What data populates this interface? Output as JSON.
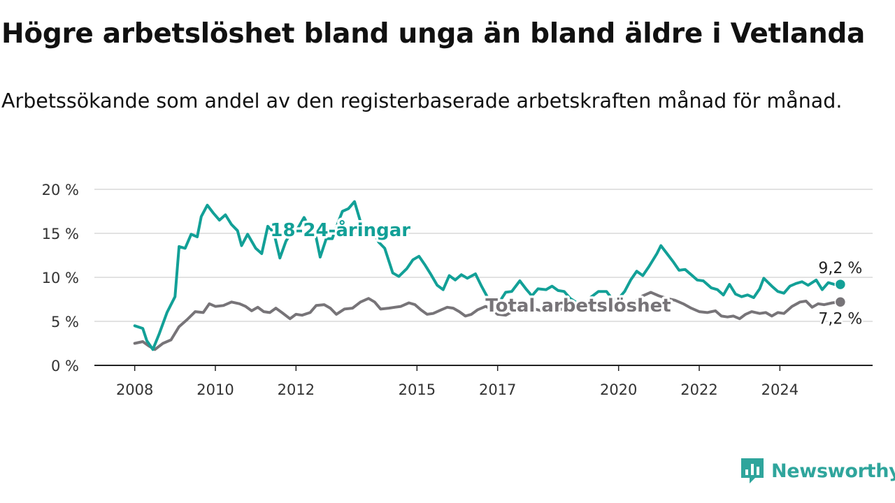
{
  "title": "Högre arbetslöshet bland unga än bland äldre i Vetlanda",
  "subtitle": "Arbetssökande som andel av den registerbaserade arbetskraften månad för månad.",
  "brand": {
    "name": "Newsworthy",
    "icon": "newsworthy-logo-icon",
    "color": "#2fa59c"
  },
  "chart_data": {
    "type": "line",
    "title": "Högre arbetslöshet bland unga än bland äldre i Vetlanda",
    "subtitle": "Arbetssökande som andel av den registerbaserade arbetskraften månad för månad.",
    "xlabel": "",
    "ylabel": "",
    "xlim": [
      2007.0,
      2026.3
    ],
    "ylim": [
      0,
      20
    ],
    "x_ticks": [
      2008,
      2010,
      2012,
      2015,
      2017,
      2020,
      2022,
      2024
    ],
    "x_tick_labels": [
      "2008",
      "2010",
      "2012",
      "2015",
      "2017",
      "2020",
      "2022",
      "2024"
    ],
    "y_ticks": [
      0,
      5,
      10,
      15,
      20
    ],
    "y_tick_labels": [
      "0 %",
      "5 %",
      "10 %",
      "15 %",
      "20 %"
    ],
    "grid": "horizontal",
    "series": [
      {
        "name": "18-24-åringar",
        "color": "#12a097",
        "end_label": "9,2 %",
        "points": [
          [
            2008.0,
            4.5
          ],
          [
            2008.2,
            4.2
          ],
          [
            2008.3,
            2.8
          ],
          [
            2008.45,
            1.8
          ],
          [
            2008.6,
            3.5
          ],
          [
            2008.8,
            6.0
          ],
          [
            2009.0,
            7.8
          ],
          [
            2009.1,
            13.5
          ],
          [
            2009.25,
            13.3
          ],
          [
            2009.4,
            14.9
          ],
          [
            2009.55,
            14.6
          ],
          [
            2009.65,
            16.9
          ],
          [
            2009.8,
            18.2
          ],
          [
            2009.95,
            17.3
          ],
          [
            2010.1,
            16.5
          ],
          [
            2010.25,
            17.1
          ],
          [
            2010.4,
            16.0
          ],
          [
            2010.55,
            15.3
          ],
          [
            2010.65,
            13.6
          ],
          [
            2010.8,
            14.9
          ],
          [
            2011.0,
            13.3
          ],
          [
            2011.15,
            12.7
          ],
          [
            2011.3,
            15.8
          ],
          [
            2011.45,
            15.1
          ],
          [
            2011.6,
            12.2
          ],
          [
            2011.75,
            14.1
          ],
          [
            2011.9,
            15.2
          ],
          [
            2012.05,
            15.6
          ],
          [
            2012.2,
            16.8
          ],
          [
            2012.35,
            15.5
          ],
          [
            2012.5,
            14.5
          ],
          [
            2012.6,
            12.3
          ],
          [
            2012.75,
            14.4
          ],
          [
            2012.9,
            14.4
          ],
          [
            2013.0,
            15.7
          ],
          [
            2013.15,
            17.5
          ],
          [
            2013.3,
            17.8
          ],
          [
            2013.45,
            18.6
          ],
          [
            2013.6,
            16.3
          ],
          [
            2013.75,
            15.0
          ],
          [
            2013.9,
            15.3
          ],
          [
            2014.05,
            14.0
          ],
          [
            2014.2,
            13.3
          ],
          [
            2014.4,
            10.5
          ],
          [
            2014.55,
            10.1
          ],
          [
            2014.75,
            11.0
          ],
          [
            2014.9,
            12.0
          ],
          [
            2015.05,
            12.4
          ],
          [
            2015.2,
            11.4
          ],
          [
            2015.35,
            10.3
          ],
          [
            2015.5,
            9.1
          ],
          [
            2015.65,
            8.6
          ],
          [
            2015.8,
            10.2
          ],
          [
            2015.95,
            9.7
          ],
          [
            2016.1,
            10.3
          ],
          [
            2016.25,
            9.9
          ],
          [
            2016.45,
            10.4
          ],
          [
            2016.6,
            9.0
          ],
          [
            2016.8,
            7.3
          ],
          [
            2017.0,
            6.9
          ],
          [
            2017.2,
            8.3
          ],
          [
            2017.35,
            8.4
          ],
          [
            2017.55,
            9.6
          ],
          [
            2017.7,
            8.7
          ],
          [
            2017.85,
            7.9
          ],
          [
            2018.0,
            8.7
          ],
          [
            2018.2,
            8.6
          ],
          [
            2018.35,
            9.0
          ],
          [
            2018.5,
            8.5
          ],
          [
            2018.65,
            8.4
          ],
          [
            2018.8,
            7.6
          ],
          [
            2019.0,
            7.0
          ],
          [
            2019.15,
            6.7
          ],
          [
            2019.3,
            7.7
          ],
          [
            2019.5,
            8.4
          ],
          [
            2019.7,
            8.4
          ],
          [
            2019.85,
            7.5
          ],
          [
            2020.0,
            7.6
          ],
          [
            2020.15,
            8.4
          ],
          [
            2020.3,
            9.7
          ],
          [
            2020.45,
            10.7
          ],
          [
            2020.6,
            10.2
          ],
          [
            2020.75,
            11.2
          ],
          [
            2020.95,
            12.7
          ],
          [
            2021.05,
            13.6
          ],
          [
            2021.2,
            12.7
          ],
          [
            2021.35,
            11.8
          ],
          [
            2021.5,
            10.8
          ],
          [
            2021.65,
            10.9
          ],
          [
            2021.8,
            10.3
          ],
          [
            2021.95,
            9.7
          ],
          [
            2022.1,
            9.6
          ],
          [
            2022.3,
            8.8
          ],
          [
            2022.45,
            8.6
          ],
          [
            2022.6,
            8.0
          ],
          [
            2022.75,
            9.2
          ],
          [
            2022.9,
            8.1
          ],
          [
            2023.05,
            7.8
          ],
          [
            2023.2,
            8.0
          ],
          [
            2023.35,
            7.7
          ],
          [
            2023.5,
            8.7
          ],
          [
            2023.6,
            9.9
          ],
          [
            2023.8,
            9.0
          ],
          [
            2023.95,
            8.4
          ],
          [
            2024.1,
            8.2
          ],
          [
            2024.25,
            9.0
          ],
          [
            2024.4,
            9.3
          ],
          [
            2024.55,
            9.5
          ],
          [
            2024.7,
            9.1
          ],
          [
            2024.9,
            9.7
          ],
          [
            2025.05,
            8.6
          ],
          [
            2025.2,
            9.4
          ],
          [
            2025.35,
            9.2
          ],
          [
            2025.5,
            9.2
          ]
        ]
      },
      {
        "name": "Total arbetslöshet",
        "color": "#777478",
        "end_label": "7,2 %",
        "points": [
          [
            2008.0,
            2.5
          ],
          [
            2008.2,
            2.7
          ],
          [
            2008.35,
            2.2
          ],
          [
            2008.5,
            1.8
          ],
          [
            2008.7,
            2.5
          ],
          [
            2008.9,
            2.9
          ],
          [
            2009.1,
            4.4
          ],
          [
            2009.3,
            5.2
          ],
          [
            2009.5,
            6.1
          ],
          [
            2009.7,
            6.0
          ],
          [
            2009.85,
            7.0
          ],
          [
            2010.0,
            6.7
          ],
          [
            2010.2,
            6.8
          ],
          [
            2010.4,
            7.2
          ],
          [
            2010.6,
            7.0
          ],
          [
            2010.75,
            6.7
          ],
          [
            2010.9,
            6.2
          ],
          [
            2011.05,
            6.6
          ],
          [
            2011.2,
            6.1
          ],
          [
            2011.35,
            6.0
          ],
          [
            2011.5,
            6.5
          ],
          [
            2011.65,
            6.0
          ],
          [
            2011.85,
            5.3
          ],
          [
            2012.0,
            5.8
          ],
          [
            2012.15,
            5.7
          ],
          [
            2012.35,
            6.0
          ],
          [
            2012.5,
            6.8
          ],
          [
            2012.7,
            6.9
          ],
          [
            2012.85,
            6.5
          ],
          [
            2013.0,
            5.8
          ],
          [
            2013.2,
            6.4
          ],
          [
            2013.4,
            6.5
          ],
          [
            2013.6,
            7.2
          ],
          [
            2013.8,
            7.6
          ],
          [
            2013.95,
            7.2
          ],
          [
            2014.1,
            6.4
          ],
          [
            2014.3,
            6.5
          ],
          [
            2014.45,
            6.6
          ],
          [
            2014.6,
            6.7
          ],
          [
            2014.8,
            7.1
          ],
          [
            2014.95,
            6.9
          ],
          [
            2015.1,
            6.3
          ],
          [
            2015.25,
            5.8
          ],
          [
            2015.4,
            5.9
          ],
          [
            2015.6,
            6.3
          ],
          [
            2015.75,
            6.6
          ],
          [
            2015.9,
            6.5
          ],
          [
            2016.05,
            6.1
          ],
          [
            2016.2,
            5.6
          ],
          [
            2016.35,
            5.8
          ],
          [
            2016.5,
            6.3
          ],
          [
            2016.7,
            6.7
          ],
          [
            2016.85,
            6.4
          ],
          [
            2017.0,
            5.8
          ],
          [
            2017.2,
            5.7
          ],
          [
            2017.4,
            6.2
          ],
          [
            2017.6,
            6.5
          ],
          [
            2017.8,
            6.6
          ],
          [
            2018.0,
            6.3
          ],
          [
            2018.2,
            6.1
          ],
          [
            2018.4,
            6.2
          ],
          [
            2018.6,
            6.4
          ],
          [
            2018.8,
            6.6
          ],
          [
            2019.0,
            6.4
          ],
          [
            2019.2,
            6.2
          ],
          [
            2019.4,
            6.3
          ],
          [
            2019.6,
            6.5
          ],
          [
            2019.8,
            6.6
          ],
          [
            2020.0,
            6.4
          ],
          [
            2020.2,
            6.6
          ],
          [
            2020.4,
            7.2
          ],
          [
            2020.6,
            7.9
          ],
          [
            2020.8,
            8.3
          ],
          [
            2021.0,
            7.9
          ],
          [
            2021.2,
            7.6
          ],
          [
            2021.4,
            7.4
          ],
          [
            2021.6,
            7.0
          ],
          [
            2021.8,
            6.5
          ],
          [
            2022.0,
            6.1
          ],
          [
            2022.2,
            6.0
          ],
          [
            2022.4,
            6.2
          ],
          [
            2022.55,
            5.6
          ],
          [
            2022.7,
            5.5
          ],
          [
            2022.85,
            5.6
          ],
          [
            2023.0,
            5.3
          ],
          [
            2023.15,
            5.8
          ],
          [
            2023.3,
            6.1
          ],
          [
            2023.5,
            5.9
          ],
          [
            2023.65,
            6.0
          ],
          [
            2023.8,
            5.6
          ],
          [
            2023.95,
            6.0
          ],
          [
            2024.1,
            5.9
          ],
          [
            2024.3,
            6.7
          ],
          [
            2024.5,
            7.2
          ],
          [
            2024.65,
            7.3
          ],
          [
            2024.8,
            6.6
          ],
          [
            2024.95,
            7.0
          ],
          [
            2025.1,
            6.9
          ],
          [
            2025.3,
            7.1
          ],
          [
            2025.5,
            7.2
          ]
        ]
      }
    ]
  }
}
